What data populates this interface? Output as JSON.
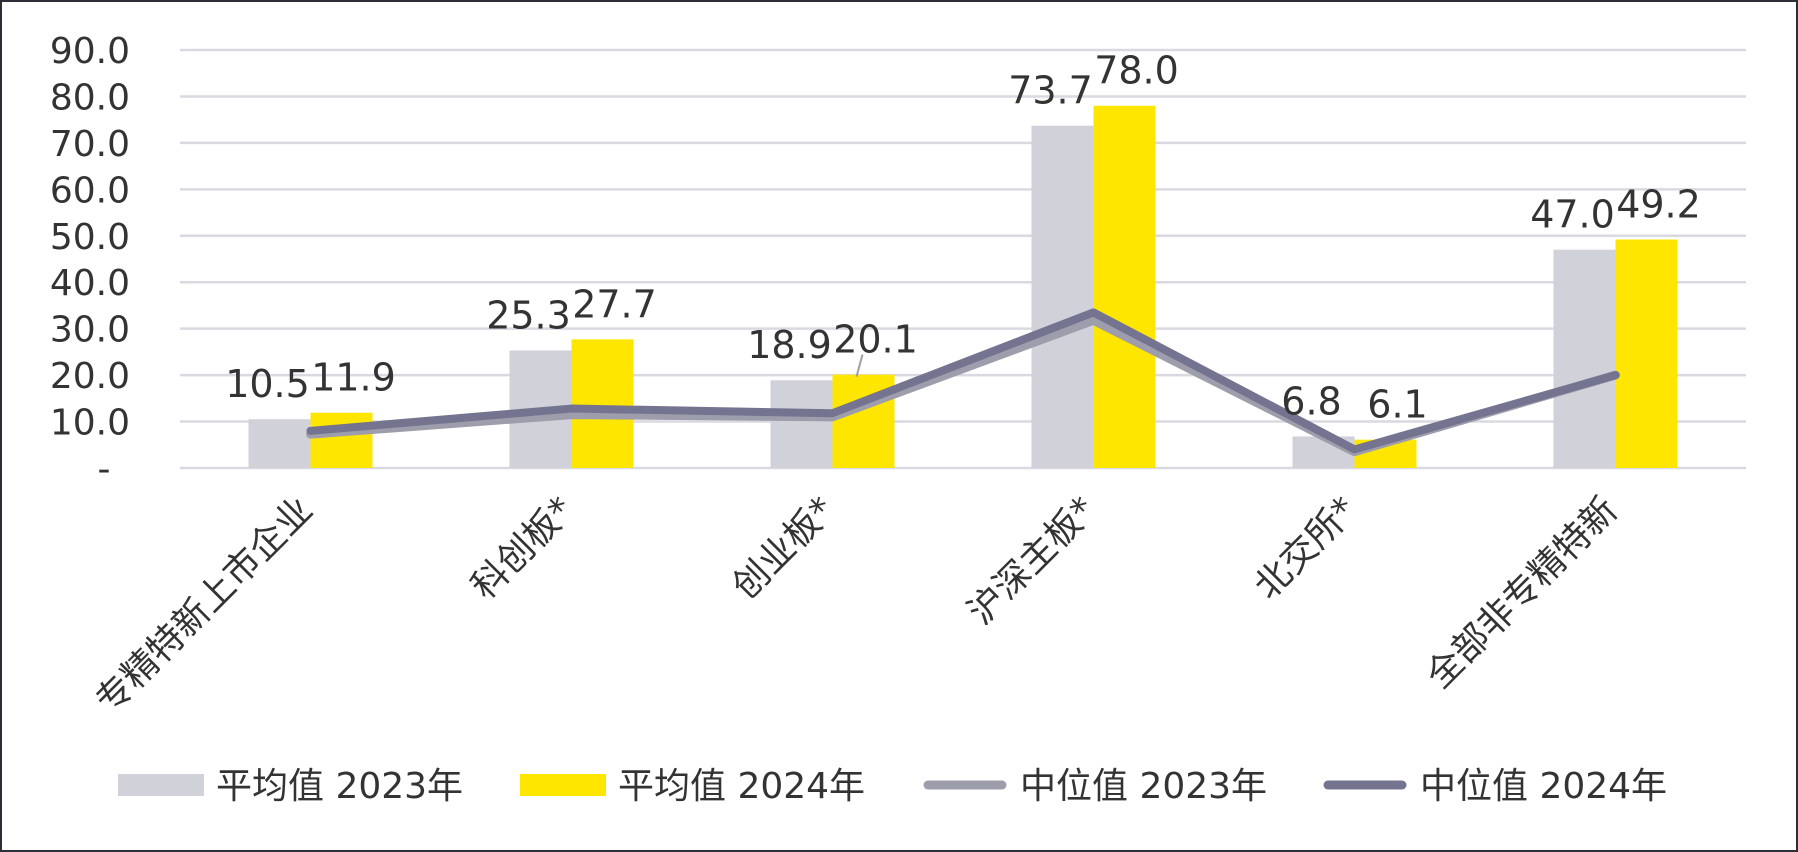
{
  "chart_data": {
    "type": "bar",
    "categories": [
      "专精特新上市企业",
      "科创板*",
      "创业板*",
      "沪深主板*",
      "北交所*",
      "全部非专精特新"
    ],
    "ylim": [
      0,
      90
    ],
    "y_ticks": [
      "-",
      "10.0",
      "20.0",
      "30.0",
      "40.0",
      "50.0",
      "60.0",
      "70.0",
      "80.0",
      "90.0"
    ],
    "grid": true,
    "legend_position": "bottom",
    "series": [
      {
        "name": "平均值 2023年",
        "kind": "bar",
        "color": "#d1d1d9",
        "values": [
          10.5,
          25.3,
          18.9,
          73.7,
          6.8,
          47.0
        ],
        "labels": [
          "10.5",
          "25.3",
          "18.9",
          "73.7",
          "6.8",
          "47.0"
        ]
      },
      {
        "name": "平均值 2024年",
        "kind": "bar",
        "color": "#ffe600",
        "values": [
          11.9,
          27.7,
          20.1,
          78.0,
          6.1,
          49.2
        ],
        "labels": [
          "11.9",
          "27.7",
          "20.1",
          "78.0",
          "6.1",
          "49.2"
        ]
      },
      {
        "name": "中位值 2023年",
        "kind": "line",
        "color": "#9d9dab",
        "values": [
          7.3,
          11.5,
          11.0,
          31.8,
          3.5,
          20.0
        ]
      },
      {
        "name": "中位值 2024年",
        "kind": "line",
        "color": "#747490",
        "values": [
          8.0,
          12.8,
          11.8,
          33.5,
          4.0,
          20.0
        ]
      }
    ]
  }
}
